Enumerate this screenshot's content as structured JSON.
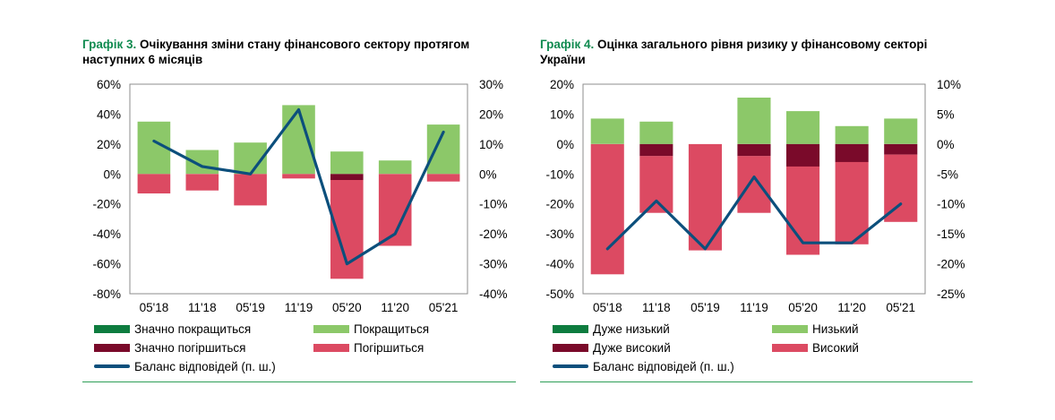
{
  "colors": {
    "much_better": "#0e7c3f",
    "better": "#8cc869",
    "much_worse": "#7a0a2a",
    "worse": "#dc4a62",
    "balance": "#0c4f7c",
    "title_label": "#0f8a4f",
    "rule": "#2e9e57"
  },
  "charts": [
    {
      "title_label": "Графік 3.",
      "title_text": " Очікування зміни стану фінансового сектору протягом наступних 6 місяців",
      "legend": [
        "Значно покращиться",
        "Покращиться",
        "Значно погіршиться",
        "Погіршиться",
        "Баланс відповідей (п. ш.)"
      ]
    },
    {
      "title_label": "Графік 4.",
      "title_text": " Оцінка загального рівня ризику у фінансовому секторі України",
      "legend": [
        "Дуже низький",
        "Низький",
        "Дуже високий",
        "Високий",
        "Баланс відповідей (п. ш.)"
      ]
    }
  ],
  "chart_data": [
    {
      "type": "bar",
      "stacked": true,
      "categories": [
        "05'18",
        "11'18",
        "05'19",
        "11'19",
        "05'20",
        "11'20",
        "05'21"
      ],
      "yticks": [
        "60%",
        "40%",
        "20%",
        "0%",
        "-20%",
        "-40%",
        "-60%",
        "-80%"
      ],
      "y2ticks": [
        "30%",
        "20%",
        "10%",
        "0%",
        "-10%",
        "-20%",
        "-30%",
        "-40%"
      ],
      "ylim": [
        -80,
        60
      ],
      "y2lim": [
        -40,
        30
      ],
      "series": [
        {
          "name": "Значно покращиться",
          "values": [
            0,
            0,
            0,
            0,
            0,
            0,
            0
          ],
          "color_key": "much_better"
        },
        {
          "name": "Покращиться",
          "values": [
            35,
            16,
            21,
            46,
            15,
            9,
            33
          ],
          "color_key": "better"
        },
        {
          "name": "Значно погіршиться",
          "values": [
            0,
            0,
            0,
            0,
            -4,
            0,
            0
          ],
          "color_key": "much_worse"
        },
        {
          "name": "Погіршиться",
          "values": [
            -13,
            -11,
            -21,
            -3,
            -66,
            -48,
            -5
          ],
          "color_key": "worse"
        }
      ],
      "balance": {
        "name": "Баланс відповідей (п. ш.)",
        "values": [
          11,
          2.5,
          0,
          21.5,
          -30,
          -20,
          14
        ]
      },
      "grid": false,
      "legend_position": "bottom"
    },
    {
      "type": "bar",
      "stacked": true,
      "categories": [
        "05'18",
        "11'18",
        "05'19",
        "11'19",
        "05'20",
        "11'20",
        "05'21"
      ],
      "yticks": [
        "20%",
        "10%",
        "0%",
        "-10%",
        "-20%",
        "-30%",
        "-40%",
        "-50%"
      ],
      "y2ticks": [
        "10%",
        "5%",
        "0%",
        "-5%",
        "-10%",
        "-15%",
        "-20%",
        "-25%"
      ],
      "ylim": [
        -50,
        20
      ],
      "y2lim": [
        -25,
        10
      ],
      "series": [
        {
          "name": "Дуже низький",
          "values": [
            0,
            0,
            0,
            0,
            0,
            0,
            0
          ],
          "color_key": "much_better"
        },
        {
          "name": "Низький",
          "values": [
            8.5,
            7.5,
            0,
            15.5,
            11,
            6,
            8.5
          ],
          "color_key": "better"
        },
        {
          "name": "Дуже високий",
          "values": [
            0,
            -4,
            0,
            -4,
            -7.5,
            -6,
            -3.5
          ],
          "color_key": "much_worse"
        },
        {
          "name": "Високий",
          "values": [
            -43.5,
            -19,
            -35.5,
            -19,
            -29.5,
            -27.5,
            -22.5
          ],
          "color_key": "worse"
        }
      ],
      "balance": {
        "name": "Баланс відповідей (п. ш.)",
        "values": [
          -17.5,
          -9.5,
          -17.5,
          -5.5,
          -16.5,
          -16.5,
          -10
        ]
      },
      "grid": false,
      "legend_position": "bottom"
    }
  ]
}
